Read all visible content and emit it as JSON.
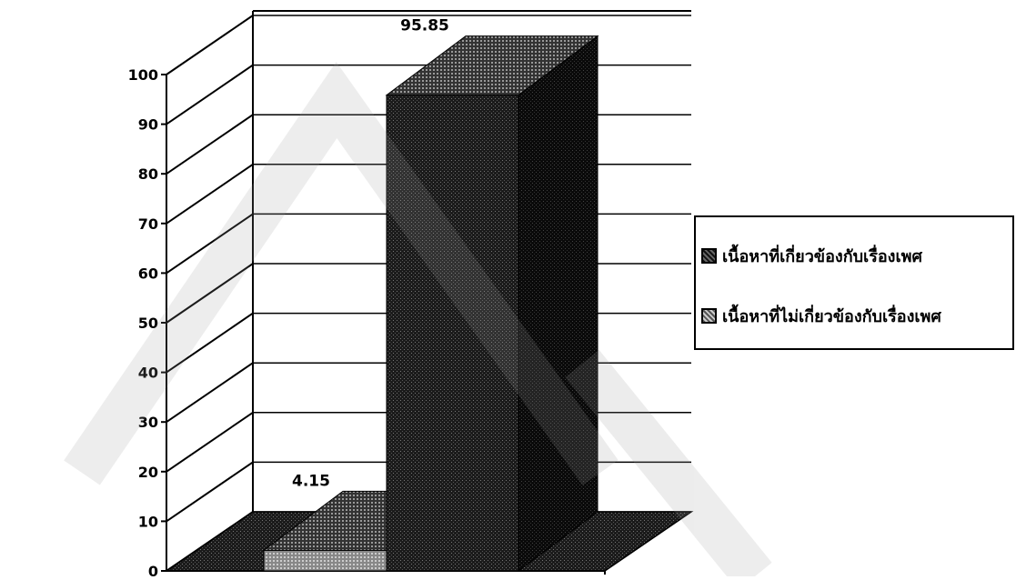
{
  "chart_data": {
    "type": "bar",
    "three_d": true,
    "categories": [
      ""
    ],
    "series": [
      {
        "name": "เนื้อหาที่เกี่ยวข้องกับเรื่องเพศ",
        "values": [
          4.15
        ]
      },
      {
        "name": "เนื้อหาที่ไม่เกี่ยวข้องกับเรื่องเพศ",
        "values": [
          95.85
        ]
      }
    ],
    "data_labels": [
      "4.15",
      "95.85"
    ],
    "title": "",
    "xlabel": "",
    "ylabel": "",
    "ylim": [
      0,
      100
    ],
    "yticks": [
      "0",
      "10",
      "20",
      "30",
      "40",
      "50",
      "60",
      "70",
      "80",
      "90",
      "100"
    ],
    "grid": true,
    "legend_position": "right"
  },
  "colors": {
    "series_1_dark": "#1a1a1a",
    "series_2_dark": "#0d0d0d",
    "gridline": "#000000"
  }
}
